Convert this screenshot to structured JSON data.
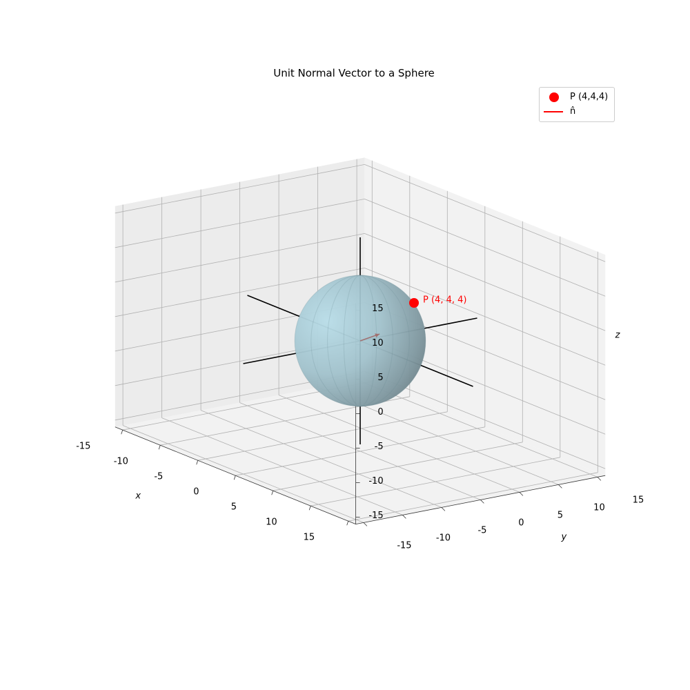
{
  "chart_data": {
    "type": "surface3d",
    "title": "Unit Normal Vector to a Sphere",
    "xlabel": "x",
    "ylabel": "y",
    "zlabel": "z",
    "xlim": [
      -16,
      16
    ],
    "ylim": [
      -16,
      16
    ],
    "zlim": [
      -16,
      16
    ],
    "x_ticks": [
      "-15",
      "-10",
      "-5",
      "0",
      "5",
      "10",
      "15"
    ],
    "y_ticks": [
      "-15",
      "-10",
      "-5",
      "0",
      "5",
      "10",
      "15"
    ],
    "z_ticks": [
      "-15",
      "-10",
      "-5",
      "0",
      "5",
      "10",
      "15"
    ],
    "grid": true,
    "legend": {
      "placement": "top-right",
      "entries": [
        {
          "label": "P (4,4,4)",
          "marker": "circle",
          "color": "#ff0000"
        },
        {
          "label": "n̂",
          "marker": "line",
          "color": "#ff0000"
        }
      ]
    },
    "surface": {
      "shape": "sphere",
      "center": [
        0,
        0,
        0
      ],
      "radius": 6.93,
      "color": "#add8e6"
    },
    "point": {
      "x": 4,
      "y": 4,
      "z": 4,
      "label": "P (4, 4, 4)",
      "color": "#ff0000"
    },
    "normal_vector": {
      "origin": [
        0,
        0,
        0
      ],
      "direction": [
        0.577,
        0.577,
        0.577
      ],
      "color": "#ff0000"
    },
    "axis_lines": {
      "range": [
        -15,
        15
      ],
      "color": "#000000"
    }
  }
}
